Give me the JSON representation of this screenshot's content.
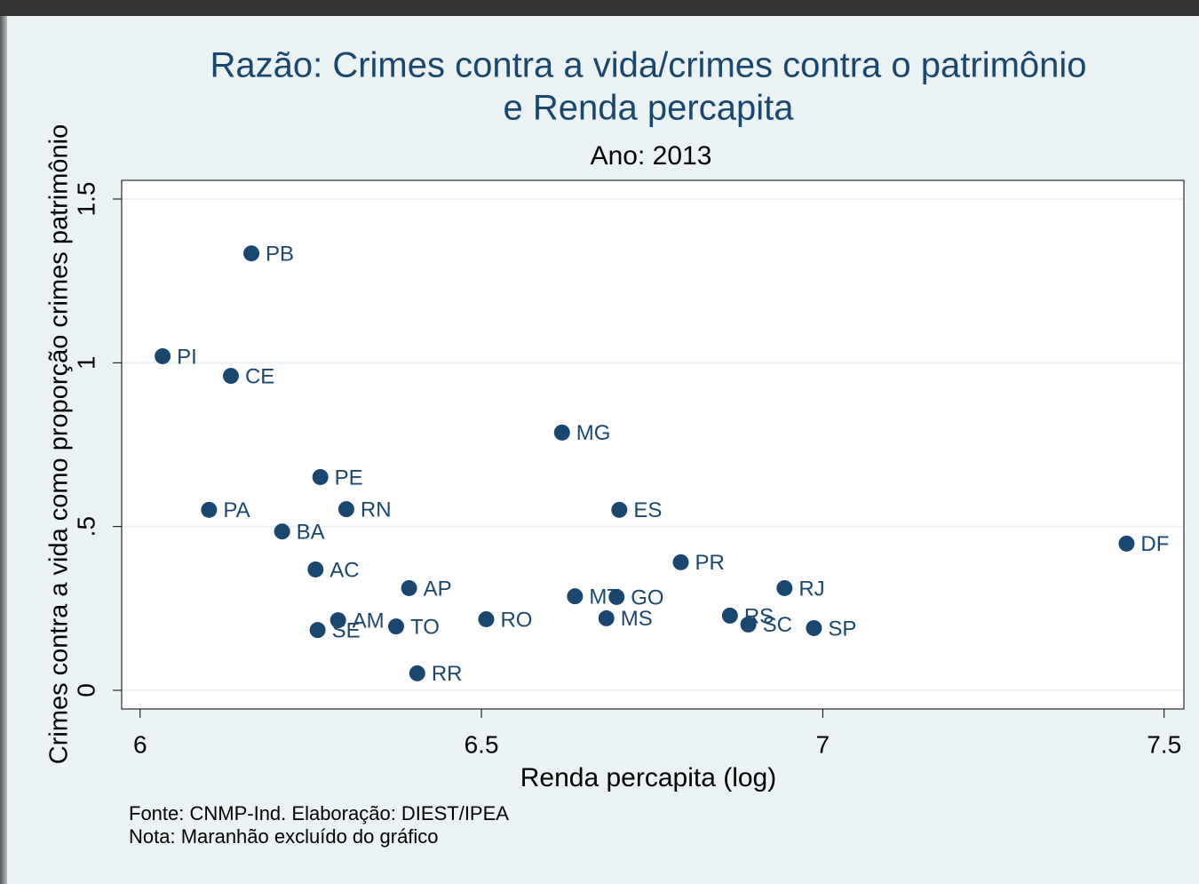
{
  "chart_data": {
    "type": "scatter",
    "title": [
      "Razão: Crimes contra a vida/crimes contra o patrimônio",
      "e Renda percapita"
    ],
    "subtitle": "Ano: 2013",
    "x_label": "Renda percapita (log)",
    "y_label": "Crimes contra a vida como proporção crimes patrimônio",
    "notes": [
      "Fonte: CNMP-Ind. Elaboração: DIEST/IPEA",
      "Nota: Maranhão excluído do gráfico"
    ],
    "color": "#1a476f",
    "labels": [
      "PB",
      "PI",
      "CE",
      "MG",
      "PE",
      "PA",
      "RN",
      "ES",
      "BA",
      "DF",
      "PR",
      "AC",
      "AP",
      "RJ",
      "MT",
      "GO",
      "AM",
      "RO",
      "MS",
      "RS",
      "TO",
      "SC",
      "SE",
      "SP",
      "RR"
    ],
    "x": [
      6.163,
      6.033,
      6.133,
      6.618,
      6.264,
      6.101,
      6.302,
      6.702,
      6.208,
      7.445,
      6.792,
      6.257,
      6.394,
      6.944,
      6.637,
      6.698,
      6.29,
      6.507,
      6.683,
      6.864,
      6.375,
      6.891,
      6.26,
      6.987,
      6.406
    ],
    "values": [
      1.334,
      1.02,
      0.96,
      0.787,
      0.651,
      0.551,
      0.553,
      0.551,
      0.485,
      0.448,
      0.391,
      0.369,
      0.312,
      0.312,
      0.287,
      0.285,
      0.214,
      0.217,
      0.22,
      0.228,
      0.195,
      0.201,
      0.184,
      0.19,
      0.052
    ],
    "xlim": [
      5.973,
      7.529
    ],
    "ylim": [
      -0.057,
      1.557
    ],
    "xticks": [
      6,
      6.5,
      7,
      7.5
    ],
    "yticks": [
      0,
      {
        "value": 0.5,
        "label": ".5"
      },
      1,
      1.5
    ],
    "grid": true
  }
}
